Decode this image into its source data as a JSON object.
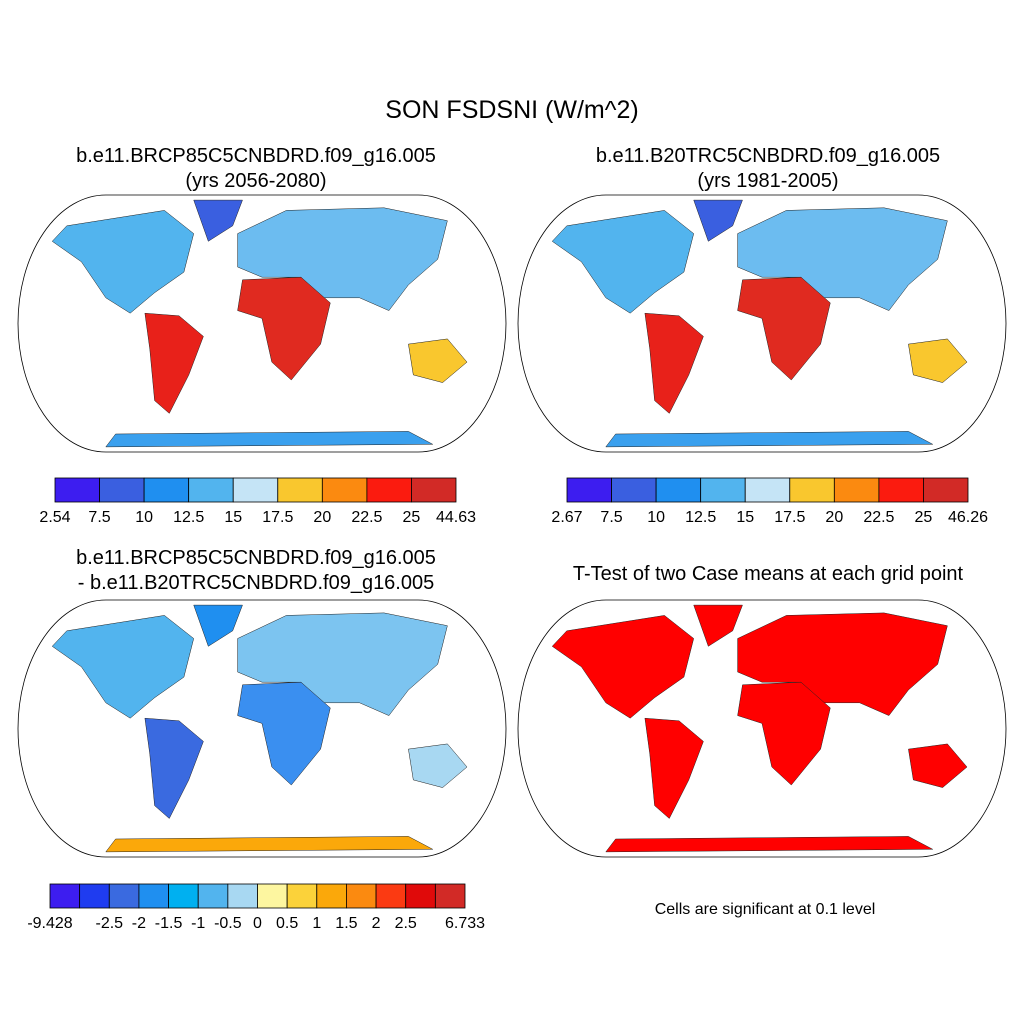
{
  "title": "SON FSDSNI (W/m^2)",
  "panels": [
    {
      "title": [
        "b.e11.BRCP85C5CNBDRD.f09_g16.005",
        "(yrs 2056-2080)"
      ],
      "colorbar": {
        "labels": [
          2.54,
          7.5,
          10,
          12.5,
          15,
          17.5,
          20,
          22.5,
          25,
          44.63
        ],
        "colors": [
          "#3d1df0",
          "#3a5fe0",
          "#1f8ff0",
          "#52b4ee",
          "#c5e4f6",
          "#f9c72e",
          "#fb8a10",
          "#fb1b0f",
          "#d22a26"
        ]
      }
    },
    {
      "title": [
        "b.e11.B20TRC5CNBDRD.f09_g16.005",
        "(yrs 1981-2005)"
      ],
      "colorbar": {
        "labels": [
          2.67,
          7.5,
          10,
          12.5,
          15,
          17.5,
          20,
          22.5,
          25,
          46.26
        ],
        "colors": [
          "#3d1df0",
          "#3a5fe0",
          "#1f8ff0",
          "#52b4ee",
          "#c5e4f6",
          "#f9c72e",
          "#fb8a10",
          "#fb1b0f",
          "#d22a26"
        ]
      }
    },
    {
      "title": [
        "b.e11.BRCP85C5CNBDRD.f09_g16.005",
        "- b.e11.B20TRC5CNBDRD.f09_g16.005"
      ],
      "colorbar": {
        "labels": [
          -9.428,
          null,
          -2.5,
          -2,
          -1.5,
          -1,
          -0.5,
          0,
          0.5,
          1,
          1.5,
          2,
          2.5,
          null,
          6.733
        ],
        "colors": [
          "#3d1df0",
          "#1f3cf0",
          "#3a6ae0",
          "#1f8ff0",
          "#00b0f0",
          "#52b4ee",
          "#a8d8f2",
          "#fdf6a0",
          "#fbd23a",
          "#fba80a",
          "#fb8a10",
          "#fb3a12",
          "#e00a0a",
          "#d22a26"
        ]
      }
    },
    {
      "title": [
        "T-Test of two Case means at each grid point"
      ],
      "footnote": "Cells are significant at 0.1 level"
    }
  ]
}
